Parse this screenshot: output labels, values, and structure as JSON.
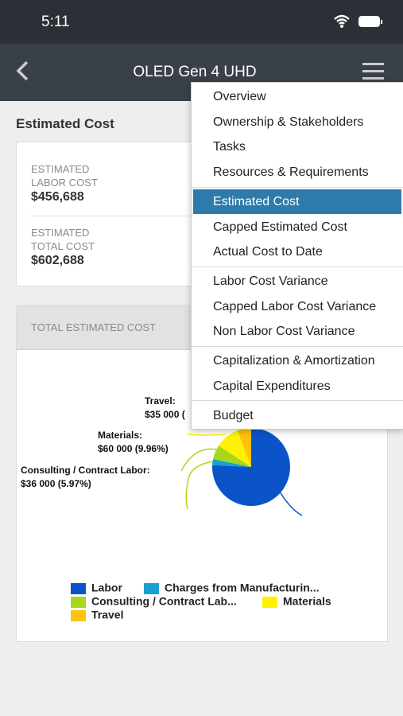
{
  "status_bar": {
    "time": "5:11"
  },
  "nav": {
    "title": "OLED Gen 4 UHD"
  },
  "section_title": "Estimated Cost",
  "summary": [
    {
      "label_lines": [
        "ESTIMATED",
        "LABOR COST"
      ],
      "value": "$456,688"
    },
    {
      "label_lines": [
        "ESTIMATED",
        "TOTAL COST"
      ],
      "value": "$602,688"
    }
  ],
  "chart_card": {
    "header": "TOTAL ESTIMATED COST"
  },
  "chart_data": {
    "type": "pie",
    "categories": [
      "Labor",
      "Charges from Manufacturin...",
      "Consulting / Contract Lab...",
      "Materials",
      "Travel"
    ],
    "values": [
      456688,
      15000,
      36000,
      60000,
      35000
    ],
    "colors": [
      "#0a53c9",
      "#1aa0d0",
      "#a6d81e",
      "#fff200",
      "#ffc20e"
    ],
    "label_names": [
      null,
      null,
      "Consulting / Contract Labor:",
      "Materials:",
      "Travel:"
    ],
    "value_labels": [
      null,
      null,
      "$36 000 (5.97%)",
      "$60 000 (9.96%)",
      "$35 000 ("
    ]
  },
  "menu": {
    "groups": [
      {
        "items": [
          {
            "label": "Overview"
          },
          {
            "label": "Ownership & Stakeholders"
          },
          {
            "label": "Tasks"
          },
          {
            "label": "Resources & Requirements"
          }
        ]
      },
      {
        "items": [
          {
            "label": "Estimated Cost",
            "selected": true
          },
          {
            "label": "Capped Estimated Cost"
          },
          {
            "label": "Actual Cost to Date"
          }
        ]
      },
      {
        "items": [
          {
            "label": "Labor Cost Variance"
          },
          {
            "label": "Capped Labor Cost Variance"
          },
          {
            "label": "Non Labor Cost Variance"
          }
        ]
      },
      {
        "items": [
          {
            "label": "Capitalization & Amortization"
          },
          {
            "label": "Capital Expenditures"
          }
        ]
      },
      {
        "items": [
          {
            "label": "Budget"
          }
        ]
      }
    ]
  }
}
